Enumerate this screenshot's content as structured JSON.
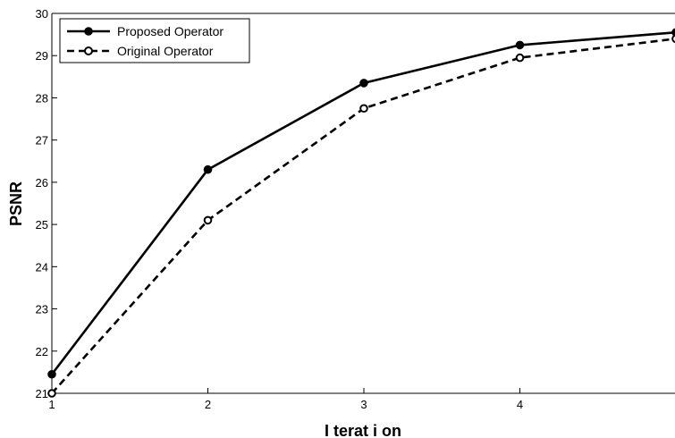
{
  "chart_data": {
    "type": "line",
    "title": "",
    "xlabel": "I terat i on",
    "ylabel": "PSNR",
    "x": [
      1,
      2,
      3,
      4,
      5
    ],
    "xticks": [
      1,
      2,
      3,
      4
    ],
    "xlim": [
      1,
      5
    ],
    "yticks": [
      21,
      22,
      23,
      24,
      25,
      26,
      27,
      28,
      29,
      30
    ],
    "ylim": [
      21,
      30
    ],
    "grid": false,
    "legend_position": "top-left",
    "series": [
      {
        "name": "Proposed Operator",
        "line_style": "solid",
        "marker": "filled-circle",
        "values": [
          21.45,
          26.3,
          28.35,
          29.25,
          29.55
        ]
      },
      {
        "name": "Original Operator",
        "line_style": "dashed",
        "marker": "open-circle",
        "values": [
          21.0,
          25.1,
          27.75,
          28.95,
          29.4
        ]
      }
    ],
    "colors": {
      "line": "#000000",
      "background": "#ffffff"
    }
  }
}
